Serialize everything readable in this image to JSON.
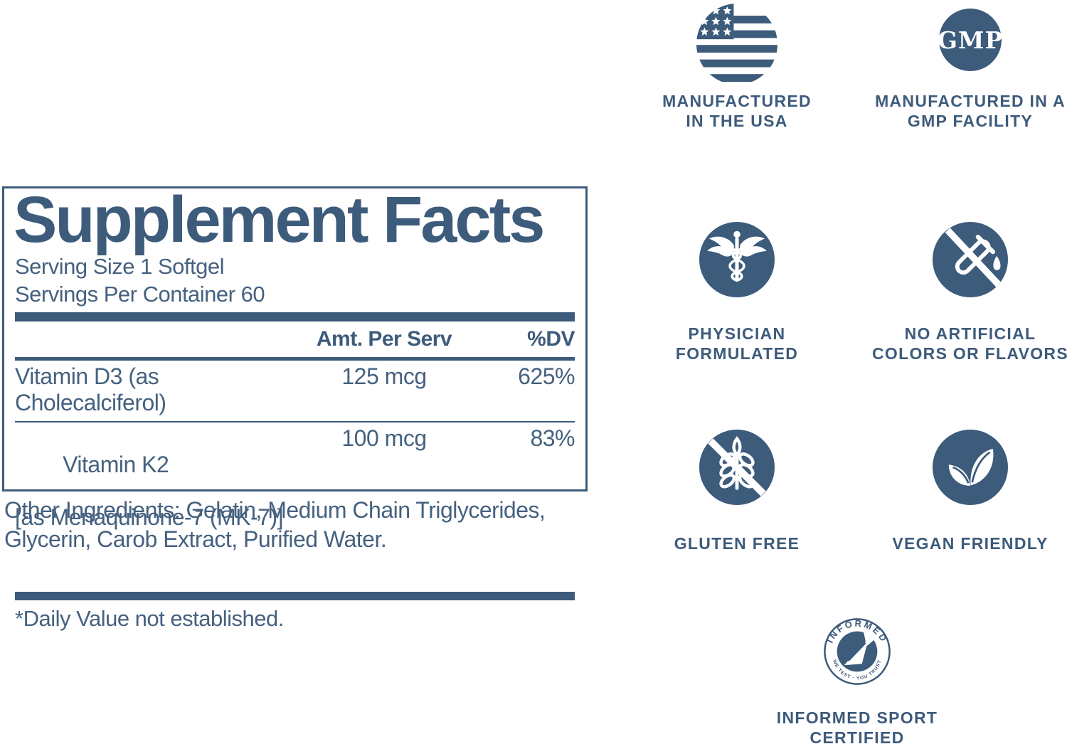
{
  "supplement_facts": {
    "title": "Supplement Facts",
    "serving_size": "Serving Size 1 Softgel",
    "servings_per_container": "Servings Per Container 60",
    "columns": {
      "amount": "Amt. Per Serv",
      "dv": "%DV"
    },
    "rows": [
      {
        "name": "Vitamin D3 (as  Cholecalciferol)",
        "amount": "125 mcg",
        "dv": "625%"
      },
      {
        "name": "Vitamin K2",
        "name_line2": "[as Menaquinone-7 (MK-7)]",
        "amount": "100 mcg",
        "dv": "83%"
      }
    ],
    "footnote": "*Daily Value not established.",
    "other_ingredients": "Other Ingredients: Gelatin, Medium Chain Triglycerides, Glycerin, Carob Extract, Purified Water."
  },
  "badges": {
    "usa": {
      "lines": [
        "MANUFACTURED",
        "IN THE USA"
      ]
    },
    "gmp": {
      "circle_text": "GMP",
      "lines": [
        "MANUFACTURED IN A",
        "GMP FACILITY"
      ]
    },
    "physician": {
      "lines": [
        "PHYSICIAN",
        "FORMULATED"
      ]
    },
    "no_artificial": {
      "lines": [
        "NO ARTIFICIAL",
        "COLORS OR FLAVORS"
      ]
    },
    "gluten_free": {
      "lines": [
        "GLUTEN FREE"
      ]
    },
    "vegan": {
      "lines": [
        "VEGAN FRIENDLY"
      ]
    },
    "informed_sport": {
      "ring_top": "INFORMED",
      "ring_bottom": "WE TEST · YOU TRUST",
      "lines": [
        "INFORMED SPORT",
        "CERTIFIED"
      ]
    }
  },
  "colors": {
    "primary": "#3d5b7b",
    "text": "#45617f",
    "icon_foreground": "#ffffff"
  }
}
